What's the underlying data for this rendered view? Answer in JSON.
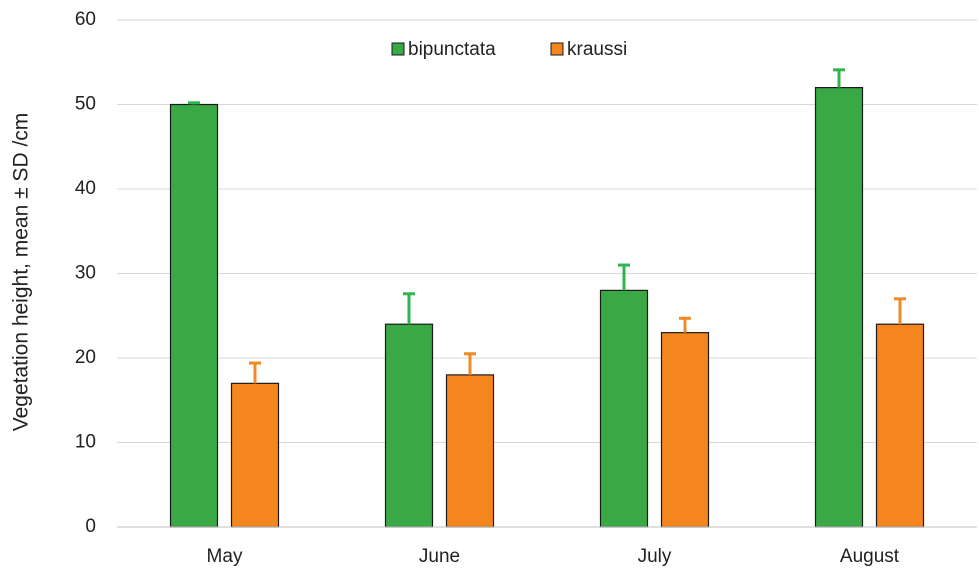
{
  "chart_data": {
    "type": "bar",
    "y_label": "Vegetation height,  mean ± SD /cm",
    "categories": [
      "May",
      "June",
      "July",
      "August"
    ],
    "series": [
      {
        "name": "bipunctata",
        "color": "#3aa845",
        "error_color": "#2fb44f",
        "values": [
          50,
          24,
          28,
          52
        ],
        "errors": [
          0.2,
          3.6,
          3,
          2.1
        ]
      },
      {
        "name": "kraussi",
        "color": "#f5861f",
        "error_color": "#f08a24",
        "values": [
          17,
          18,
          23,
          24
        ],
        "errors": [
          2.4,
          2.5,
          1.7,
          3
        ]
      }
    ],
    "ylim": [
      0,
      60
    ],
    "yticks": [
      0,
      10,
      20,
      30,
      40,
      50,
      60
    ],
    "grid": true,
    "legend": "top"
  }
}
